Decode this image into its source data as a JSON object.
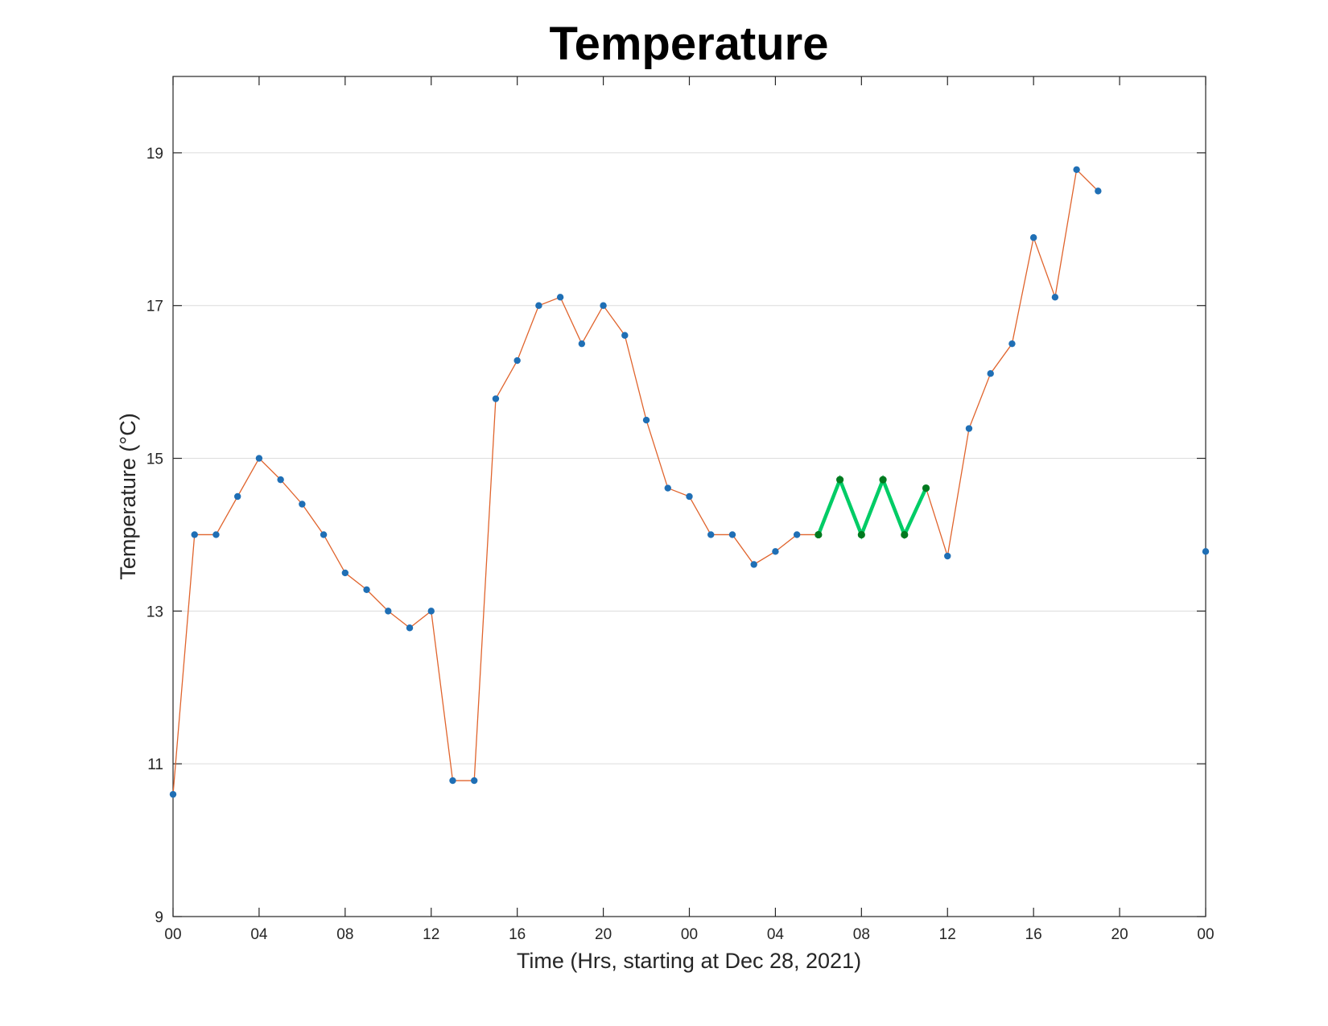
{
  "chart_data": {
    "type": "line",
    "title": "Temperature",
    "xlabel": "Time (Hrs, starting at Dec 28, 2021)",
    "ylabel": "Temperature (°C)",
    "xlim": [
      0,
      48
    ],
    "ylim": [
      9,
      20
    ],
    "x_ticks": [
      0,
      4,
      8,
      12,
      16,
      20,
      24,
      28,
      32,
      36,
      40,
      44,
      48
    ],
    "x_tick_labels": [
      "00",
      "04",
      "08",
      "12",
      "16",
      "20",
      "00",
      "04",
      "08",
      "12",
      "16",
      "20",
      "00"
    ],
    "y_ticks": [
      9,
      11,
      13,
      15,
      17,
      19
    ],
    "y_tick_labels": [
      "9",
      "11",
      "13",
      "15",
      "17",
      "19"
    ],
    "grid": "horizontal",
    "legend": "none",
    "series": [
      {
        "role": "measured",
        "line_color": "#e0642d",
        "marker_color": "#1f6fb5",
        "segments": [
          [
            [
              0,
              10.6
            ],
            [
              1,
              14.0
            ],
            [
              2,
              14.0
            ],
            [
              3,
              14.5
            ],
            [
              4,
              15.0
            ],
            [
              5,
              14.72
            ],
            [
              6,
              14.4
            ],
            [
              7,
              14.0
            ],
            [
              8,
              13.5
            ],
            [
              9,
              13.28
            ],
            [
              10,
              13.0
            ],
            [
              11,
              12.78
            ],
            [
              12,
              13.0
            ],
            [
              13,
              10.78
            ],
            [
              14,
              10.78
            ],
            [
              15,
              15.78
            ],
            [
              16,
              16.28
            ],
            [
              17,
              17.0
            ],
            [
              18,
              17.11
            ],
            [
              19,
              16.5
            ],
            [
              20,
              17.0
            ],
            [
              21,
              16.61
            ],
            [
              22,
              15.5
            ],
            [
              23,
              14.61
            ],
            [
              24,
              14.5
            ],
            [
              25,
              14.0
            ],
            [
              26,
              14.0
            ],
            [
              27,
              13.61
            ],
            [
              28,
              13.78
            ],
            [
              29,
              14.0
            ],
            [
              30,
              14.0
            ]
          ],
          [
            [
              35,
              14.61
            ],
            [
              36,
              13.72
            ],
            [
              37,
              15.39
            ],
            [
              38,
              16.11
            ],
            [
              39,
              16.5
            ],
            [
              40,
              17.89
            ],
            [
              41,
              17.11
            ],
            [
              42,
              18.78
            ],
            [
              43,
              18.5
            ]
          ],
          [
            [
              48,
              13.78
            ]
          ]
        ]
      },
      {
        "role": "highlighted",
        "line_color": "#00cc66",
        "marker_color": "#007a1f",
        "segments": [
          [
            [
              30,
              14.0
            ],
            [
              31,
              14.72
            ],
            [
              32,
              14.0
            ],
            [
              33,
              14.72
            ],
            [
              34,
              14.0
            ],
            [
              35,
              14.61
            ]
          ]
        ]
      }
    ]
  }
}
